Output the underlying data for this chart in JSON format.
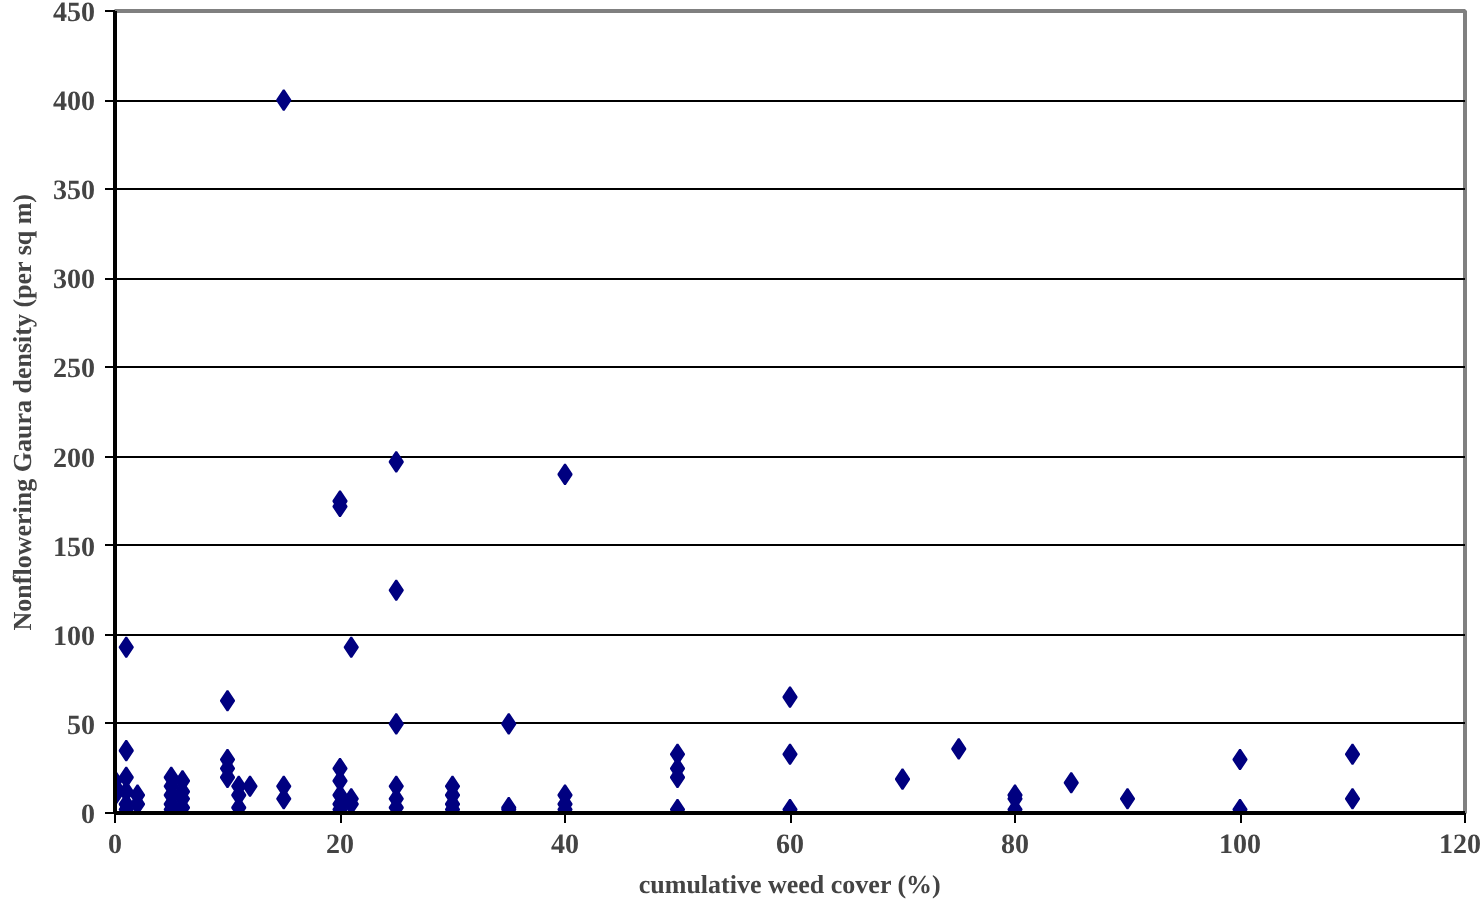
{
  "chart_data": {
    "type": "scatter",
    "xlabel": "cumulative weed cover (%)",
    "ylabel": "Nonflowering Gaura density (per sq m)",
    "xlim": [
      0,
      120
    ],
    "ylim": [
      0,
      450
    ],
    "xticks": [
      0,
      20,
      40,
      60,
      80,
      100,
      120
    ],
    "yticks": [
      0,
      50,
      100,
      150,
      200,
      250,
      300,
      350,
      400,
      450
    ],
    "grid": "y",
    "marker": "diamond",
    "series": [
      {
        "color": "#000080",
        "x": [
          15,
          20,
          20,
          25,
          40,
          25,
          1,
          21,
          10,
          25,
          35,
          60,
          60,
          50,
          50,
          50,
          0,
          0,
          0,
          1,
          1,
          1,
          1,
          2,
          2,
          1,
          5,
          5,
          5,
          5,
          5,
          6,
          6,
          6,
          6,
          10,
          10,
          10,
          11,
          11,
          11,
          12,
          15,
          15,
          20,
          20,
          20,
          20,
          20,
          21,
          21,
          25,
          25,
          25,
          30,
          30,
          30,
          30,
          35,
          35,
          40,
          40,
          40,
          50,
          60,
          70,
          75,
          80,
          80,
          80,
          85,
          90,
          100,
          100,
          110,
          110
        ],
        "values": [
          400,
          172,
          175,
          197,
          190,
          125,
          93,
          93,
          63,
          50,
          50,
          65,
          33,
          33,
          25,
          20,
          18,
          15,
          10,
          20,
          35,
          12,
          5,
          10,
          5,
          2,
          20,
          15,
          10,
          5,
          2,
          18,
          12,
          8,
          3,
          30,
          25,
          20,
          15,
          10,
          3,
          15,
          15,
          8,
          25,
          18,
          10,
          5,
          2,
          8,
          5,
          15,
          8,
          3,
          15,
          10,
          5,
          2,
          3,
          2,
          10,
          5,
          2,
          2,
          2,
          19,
          36,
          10,
          8,
          2,
          17,
          8,
          30,
          2,
          33,
          8
        ]
      }
    ]
  }
}
